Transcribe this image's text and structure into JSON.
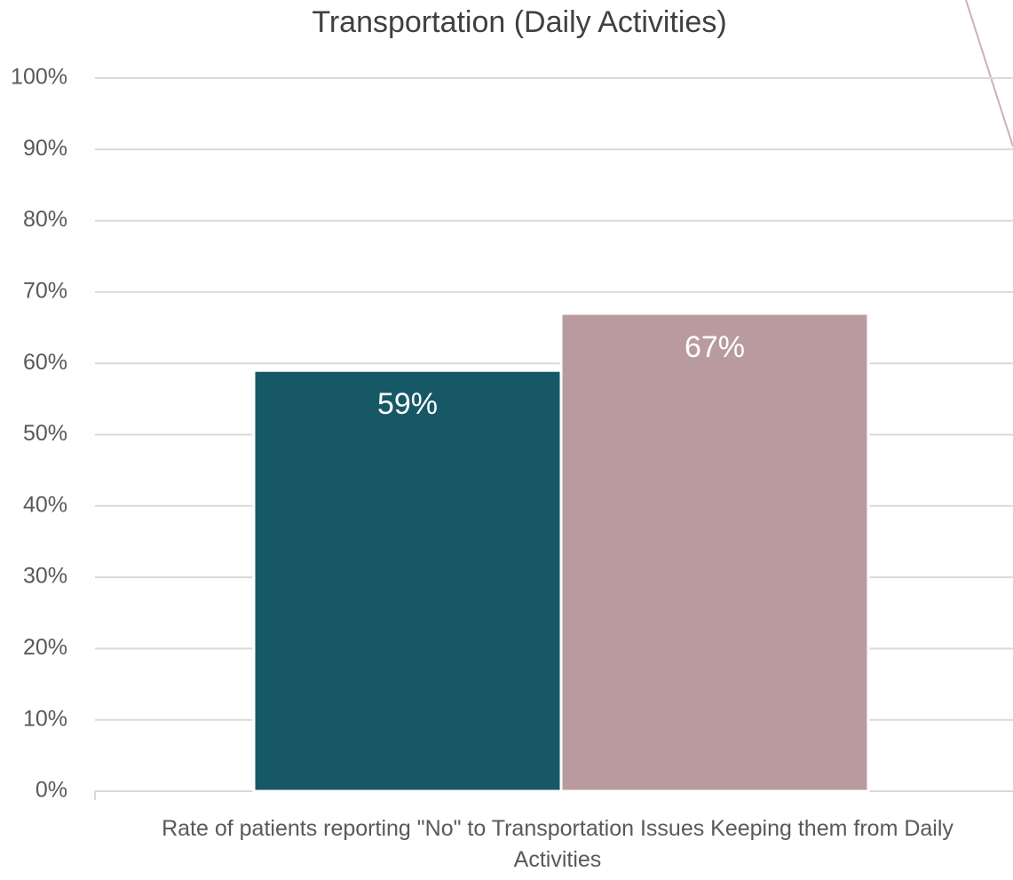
{
  "chart_data": {
    "type": "bar",
    "title": "Transportation (Daily Activities)",
    "categories": [
      "Rate of patients reporting \"No\" to Transportation Issues Keeping them from Daily Activities"
    ],
    "series": [
      {
        "color": "#175866",
        "values": [
          59
        ],
        "value_labels": [
          "59%"
        ]
      },
      {
        "color": "#b99b9f",
        "values": [
          67
        ],
        "value_labels": [
          "67%"
        ]
      }
    ],
    "ylim": [
      0,
      100
    ],
    "yticks": [
      {
        "value": 0,
        "label": "0%"
      },
      {
        "value": 10,
        "label": "10%"
      },
      {
        "value": 20,
        "label": "20%"
      },
      {
        "value": 30,
        "label": "30%"
      },
      {
        "value": 40,
        "label": "40%"
      },
      {
        "value": 50,
        "label": "50%"
      },
      {
        "value": 60,
        "label": "60%"
      },
      {
        "value": 70,
        "label": "70%"
      },
      {
        "value": 80,
        "label": "80%"
      },
      {
        "value": 90,
        "label": "90%"
      },
      {
        "value": 100,
        "label": "100%"
      }
    ],
    "grid": true
  }
}
